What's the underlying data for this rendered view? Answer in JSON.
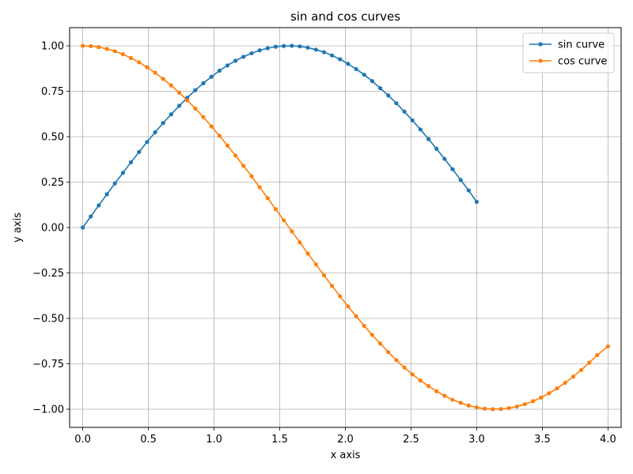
{
  "chart_data": {
    "type": "line",
    "title": "sin and cos curves",
    "xlabel": "x axis",
    "ylabel": "y axis",
    "xlim": [
      -0.1,
      4.1
    ],
    "ylim": [
      -1.1,
      1.1
    ],
    "xticks": [
      0.0,
      0.5,
      1.0,
      1.5,
      2.0,
      2.5,
      3.0,
      3.5,
      4.0
    ],
    "xtick_labels": [
      "0.0",
      "0.5",
      "1.0",
      "1.5",
      "2.0",
      "2.5",
      "3.0",
      "3.5",
      "4.0"
    ],
    "yticks": [
      -1.0,
      -0.75,
      -0.5,
      -0.25,
      0.0,
      0.25,
      0.5,
      0.75,
      1.0
    ],
    "ytick_labels": [
      "−1.00",
      "−0.75",
      "−0.50",
      "−0.25",
      "0.00",
      "0.25",
      "0.50",
      "0.75",
      "1.00"
    ],
    "grid": true,
    "legend_position": "top-right",
    "series": [
      {
        "name": "sin curve",
        "color": "#1f77b4",
        "marker": "dot",
        "x": [
          0.0,
          0.061,
          0.122,
          0.184,
          0.245,
          0.306,
          0.367,
          0.429,
          0.49,
          0.551,
          0.612,
          0.673,
          0.735,
          0.796,
          0.857,
          0.918,
          0.98,
          1.041,
          1.102,
          1.163,
          1.224,
          1.286,
          1.347,
          1.408,
          1.469,
          1.531,
          1.592,
          1.653,
          1.714,
          1.776,
          1.837,
          1.898,
          1.959,
          2.02,
          2.082,
          2.143,
          2.204,
          2.265,
          2.327,
          2.388,
          2.449,
          2.51,
          2.571,
          2.633,
          2.694,
          2.755,
          2.816,
          2.878,
          2.939,
          3.0
        ],
        "y": [
          0.0,
          0.061,
          0.122,
          0.183,
          0.243,
          0.301,
          0.359,
          0.416,
          0.471,
          0.524,
          0.575,
          0.623,
          0.67,
          0.714,
          0.756,
          0.794,
          0.83,
          0.863,
          0.892,
          0.918,
          0.94,
          0.959,
          0.975,
          0.987,
          0.995,
          0.999,
          1.0,
          0.997,
          0.99,
          0.979,
          0.965,
          0.947,
          0.926,
          0.901,
          0.872,
          0.841,
          0.806,
          0.767,
          0.727,
          0.684,
          0.638,
          0.59,
          0.54,
          0.487,
          0.433,
          0.378,
          0.321,
          0.262,
          0.204,
          0.141
        ]
      },
      {
        "name": "cos curve",
        "color": "#ff7f0e",
        "marker": "dot",
        "x": [
          0.0,
          0.061,
          0.122,
          0.184,
          0.245,
          0.306,
          0.367,
          0.429,
          0.49,
          0.551,
          0.612,
          0.673,
          0.735,
          0.796,
          0.857,
          0.918,
          0.98,
          1.041,
          1.102,
          1.163,
          1.224,
          1.286,
          1.347,
          1.408,
          1.469,
          1.531,
          1.592,
          1.653,
          1.714,
          1.776,
          1.837,
          1.898,
          1.959,
          2.02,
          2.082,
          2.143,
          2.204,
          2.265,
          2.327,
          2.388,
          2.449,
          2.51,
          2.571,
          2.633,
          2.694,
          2.755,
          2.816,
          2.878,
          2.939,
          3.0,
          3.061,
          3.122,
          3.184,
          3.245,
          3.306,
          3.367,
          3.429,
          3.49,
          3.551,
          3.612,
          3.673,
          3.735,
          3.796,
          3.857,
          3.918,
          4.0
        ],
        "y": [
          1.0,
          0.998,
          0.993,
          0.983,
          0.97,
          0.954,
          0.933,
          0.909,
          0.882,
          0.852,
          0.818,
          0.782,
          0.742,
          0.7,
          0.655,
          0.608,
          0.557,
          0.505,
          0.451,
          0.396,
          0.34,
          0.282,
          0.222,
          0.162,
          0.101,
          0.04,
          -0.021,
          -0.082,
          -0.143,
          -0.203,
          -0.263,
          -0.321,
          -0.378,
          -0.434,
          -0.488,
          -0.541,
          -0.591,
          -0.638,
          -0.686,
          -0.73,
          -0.77,
          -0.808,
          -0.842,
          -0.872,
          -0.901,
          -0.926,
          -0.948,
          -0.965,
          -0.98,
          -0.99,
          -0.997,
          -1.0,
          -0.999,
          -0.994,
          -0.985,
          -0.972,
          -0.956,
          -0.936,
          -0.912,
          -0.885,
          -0.855,
          -0.821,
          -0.784,
          -0.744,
          -0.702,
          -0.654
        ]
      }
    ]
  }
}
